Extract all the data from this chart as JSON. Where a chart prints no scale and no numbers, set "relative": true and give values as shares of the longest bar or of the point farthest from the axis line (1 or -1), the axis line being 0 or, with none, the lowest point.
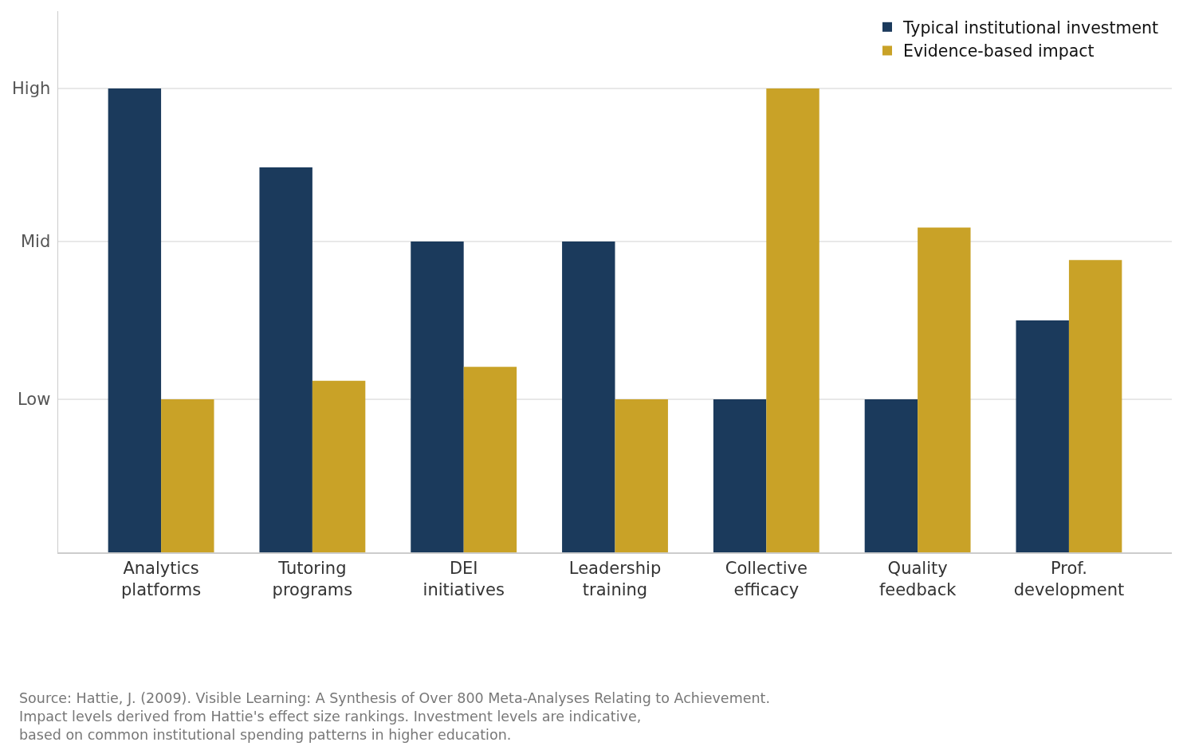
{
  "chart_data": {
    "type": "bar",
    "categories": [
      "Analytics\nplatforms",
      "Tutoring\nprograms",
      "DEI\ninitiatives",
      "Leadership\ntraining",
      "Collective\nefficacy",
      "Quality\nfeedback",
      "Prof.\ndevelopment"
    ],
    "series": [
      {
        "name": "Typical institutional investment",
        "color": "#1b3a5c",
        "values": [
          1,
          0.83,
          0.67,
          0.67,
          0.33,
          0.33,
          0.5
        ]
      },
      {
        "name": "Evidence-based impact",
        "color": "#c9a227",
        "values": [
          0.33,
          0.37,
          0.4,
          0.33,
          1,
          0.7,
          0.63
        ]
      }
    ],
    "relative": true,
    "ref_lines": [
      {
        "axis": "y",
        "value": 0.33,
        "label": "Low",
        "color": "#e0e0e0"
      },
      {
        "axis": "y",
        "value": 0.67,
        "label": "Mid",
        "color": "#e0e0e0"
      },
      {
        "axis": "y",
        "value": 1,
        "label": "High",
        "color": "#e0e0e0"
      }
    ],
    "legend": "top right",
    "annotations": [
      "Source: Hattie, J. (2009). Visible Learning: A Synthesis of Over 800 Meta-Analyses Relating to Achievement.\nImpact levels derived from Hattie's effect size rankings. Investment levels are indicative,\nbased on common institutional spending patterns in higher education."
    ]
  }
}
